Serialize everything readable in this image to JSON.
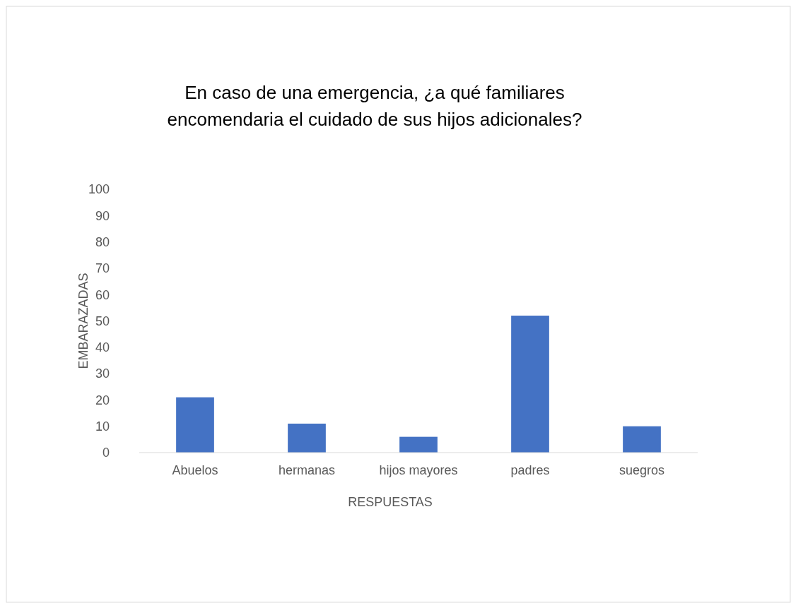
{
  "chart_data": {
    "type": "bar",
    "title": "En caso de una emergencia, ¿a qué familiares encomendaria el cuidado de sus hijos adicionales?",
    "xlabel": "RESPUESTAS",
    "ylabel": "EMBARAZADAS",
    "categories": [
      "Abuelos",
      "hermanas",
      "hijos mayores",
      "padres",
      "suegros"
    ],
    "values": [
      21,
      11,
      6,
      52,
      10
    ],
    "color": "#4472c4",
    "ylim": [
      0,
      100
    ],
    "yticks": [
      0,
      10,
      20,
      30,
      40,
      50,
      60,
      70,
      80,
      90,
      100
    ],
    "grid": false
  }
}
